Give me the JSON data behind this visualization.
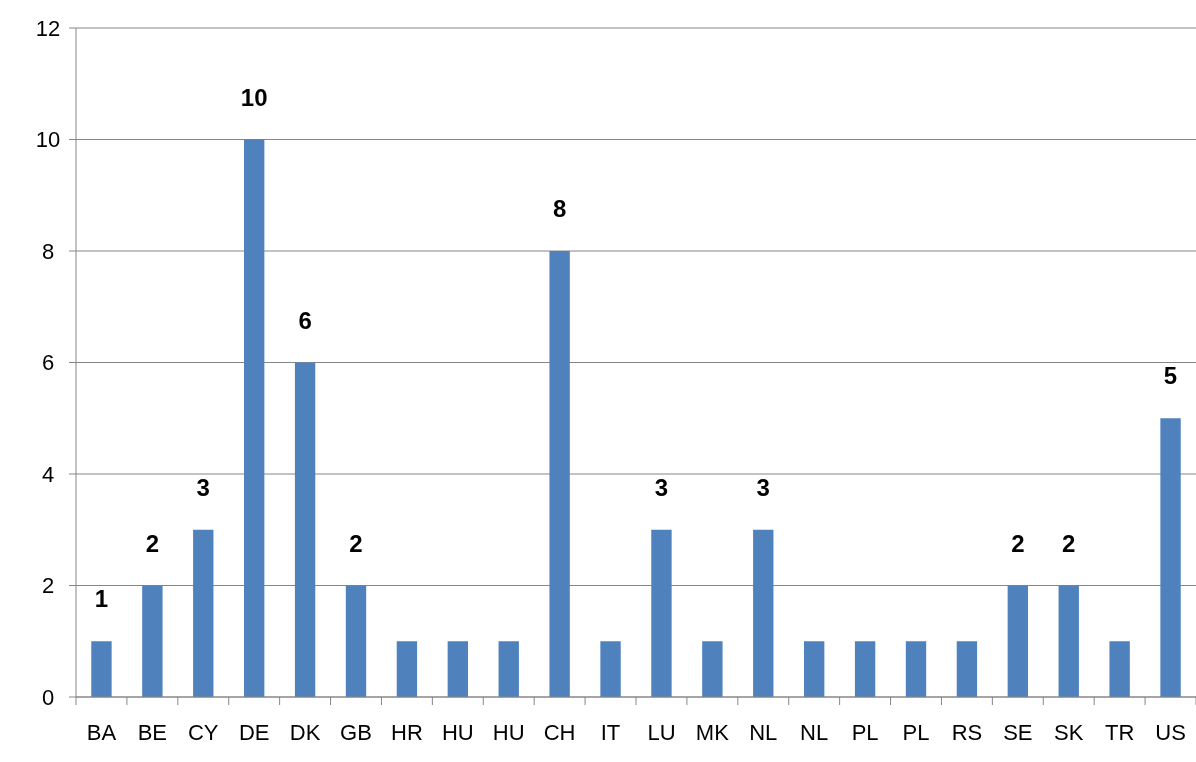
{
  "chart_data": {
    "type": "bar",
    "categories": [
      "BA",
      "BE",
      "CY",
      "DE",
      "DK",
      "GB",
      "HR",
      "HU",
      "HU",
      "CH",
      "IT",
      "LU",
      "MK",
      "NL",
      "NL",
      "PL",
      "PL",
      "RS",
      "SE",
      "SK",
      "TR",
      "US"
    ],
    "values": [
      1,
      2,
      3,
      10,
      6,
      2,
      1,
      1,
      1,
      8,
      1,
      3,
      1,
      3,
      1,
      1,
      1,
      1,
      2,
      2,
      1,
      5
    ],
    "value_labels": [
      "1",
      "2",
      "3",
      "10",
      "6",
      "2",
      null,
      null,
      null,
      "8",
      null,
      "3",
      null,
      "3",
      null,
      null,
      null,
      null,
      "2",
      "2",
      null,
      "5"
    ],
    "color": "#4f81bd",
    "ylim": [
      0,
      12
    ],
    "yticks": [
      0,
      2,
      4,
      6,
      8,
      10,
      12
    ],
    "grid": "y"
  }
}
